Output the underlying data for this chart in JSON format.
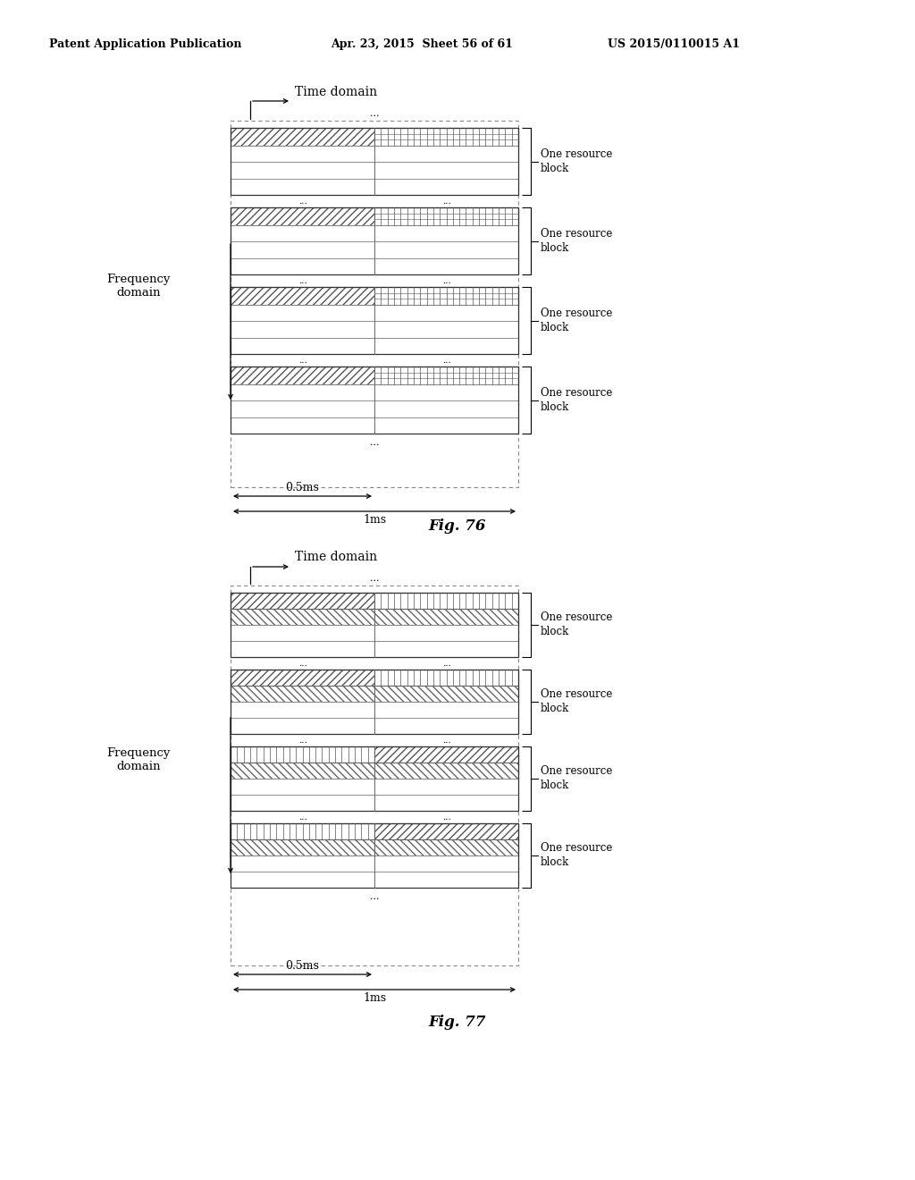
{
  "header_left": "Patent Application Publication",
  "header_mid": "Apr. 23, 2015  Sheet 56 of 61",
  "header_right": "US 2015/0110015 A1",
  "fig76_label": "Fig. 76",
  "fig77_label": "Fig. 77",
  "time_domain_label": "Time domain",
  "freq_domain_label_line1": "Frequency",
  "freq_domain_label_line2": "domain",
  "one_resource_block": "One resource\nblock",
  "dots": "...",
  "label_05ms": "0.5ms",
  "label_1ms": "1ms",
  "bg_color": "#ffffff",
  "line_color": "#000000"
}
